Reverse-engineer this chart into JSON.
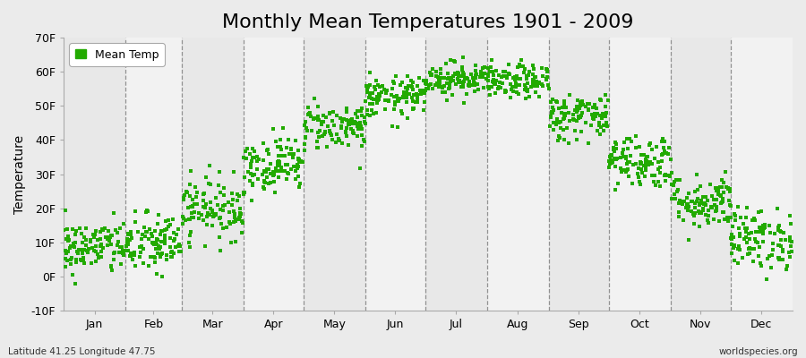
{
  "title": "Monthly Mean Temperatures 1901 - 2009",
  "ylabel": "Temperature",
  "subtitle_left": "Latitude 41.25 Longitude 47.75",
  "subtitle_right": "worldspecies.org",
  "legend_label": "Mean Temp",
  "marker_color": "#22aa00",
  "background_color": "#ebebeb",
  "plot_bg_color": "#ebebeb",
  "ylim": [
    -10,
    70
  ],
  "yticks": [
    -10,
    0,
    10,
    20,
    30,
    40,
    50,
    60,
    70
  ],
  "ytick_labels": [
    "-10F",
    "0F",
    "10F",
    "20F",
    "30F",
    "40F",
    "50F",
    "60F",
    "70F"
  ],
  "months": [
    "Jan",
    "Feb",
    "Mar",
    "Apr",
    "May",
    "Jun",
    "Jul",
    "Aug",
    "Sep",
    "Oct",
    "Nov",
    "Dec"
  ],
  "month_days": [
    31,
    28,
    31,
    30,
    31,
    30,
    31,
    31,
    30,
    31,
    30,
    31
  ],
  "n_years": 109,
  "mean_temps_F": [
    8.5,
    9.5,
    20.0,
    33.0,
    44.0,
    52.5,
    58.0,
    57.0,
    47.0,
    34.0,
    22.0,
    11.0
  ],
  "std_temps_F": [
    4.0,
    4.5,
    4.5,
    4.0,
    3.5,
    3.0,
    2.5,
    2.5,
    3.5,
    4.0,
    4.0,
    4.5
  ],
  "title_fontsize": 16,
  "label_fontsize": 10,
  "tick_fontsize": 9,
  "marker_size": 5,
  "seed": 42
}
